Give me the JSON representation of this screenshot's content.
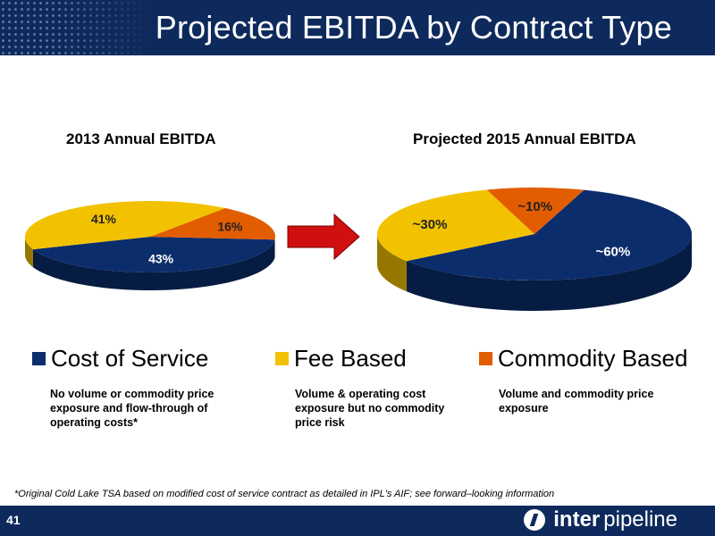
{
  "header": {
    "title": "Projected EBITDA by Contract Type"
  },
  "colors": {
    "navy": "#0e2a5c",
    "cost_of_service": "#0c2d6b",
    "fee_based": "#f2c200",
    "commodity_based": "#e25d00",
    "arrow": "#d01010"
  },
  "chart_data": [
    {
      "type": "pie",
      "title": "2013 Annual EBITDA",
      "categories": [
        "Cost of Service",
        "Fee Based",
        "Commodity Based"
      ],
      "values": [
        43,
        41,
        16
      ],
      "labels": [
        "43%",
        "41%",
        "16%"
      ]
    },
    {
      "type": "pie",
      "title": "Projected 2015 Annual EBITDA",
      "categories": [
        "Cost of Service",
        "Fee Based",
        "Commodity Based"
      ],
      "values": [
        60,
        30,
        10
      ],
      "labels": [
        "~60%",
        "~30%",
        "~10%"
      ]
    }
  ],
  "legend": [
    {
      "label": "Cost of Service",
      "color": "#0c2d6b",
      "description": "No volume or commodity price exposure and flow-through of operating costs*"
    },
    {
      "label": "Fee Based",
      "color": "#f2c200",
      "description": "Volume & operating cost exposure but no commodity price risk"
    },
    {
      "label": "Commodity Based",
      "color": "#e25d00",
      "description": "Volume and commodity price exposure"
    }
  ],
  "footnote": "*Original Cold Lake TSA based on modified cost of service contract as detailed in IPL's AIF; see forward–looking information",
  "footer": {
    "page_number": "41",
    "logo_word_a": "inter",
    "logo_word_b": "pipeline"
  }
}
